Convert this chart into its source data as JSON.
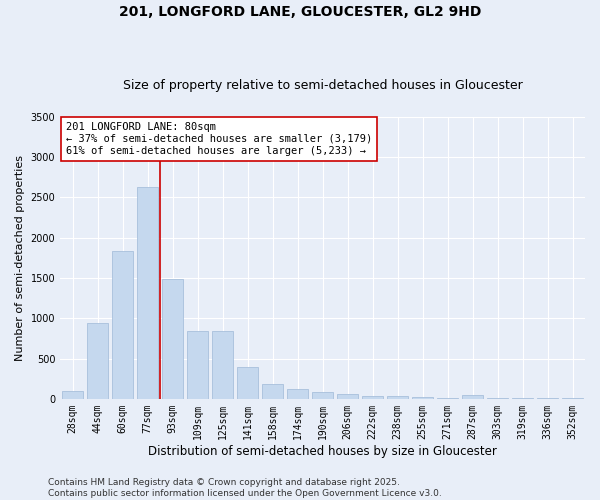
{
  "title_line1": "201, LONGFORD LANE, GLOUCESTER, GL2 9HD",
  "title_line2": "Size of property relative to semi-detached houses in Gloucester",
  "xlabel": "Distribution of semi-detached houses by size in Gloucester",
  "ylabel": "Number of semi-detached properties",
  "bar_color": "#c5d8ee",
  "bar_edge_color": "#a8c0dc",
  "background_color": "#e8eef8",
  "categories": [
    "28sqm",
    "44sqm",
    "60sqm",
    "77sqm",
    "93sqm",
    "109sqm",
    "125sqm",
    "141sqm",
    "158sqm",
    "174sqm",
    "190sqm",
    "206sqm",
    "222sqm",
    "238sqm",
    "255sqm",
    "271sqm",
    "287sqm",
    "303sqm",
    "319sqm",
    "336sqm",
    "352sqm"
  ],
  "values": [
    95,
    940,
    1830,
    2630,
    1490,
    840,
    840,
    390,
    185,
    120,
    80,
    55,
    35,
    30,
    20,
    15,
    50,
    10,
    5,
    5,
    5
  ],
  "ylim": [
    0,
    3500
  ],
  "yticks": [
    0,
    500,
    1000,
    1500,
    2000,
    2500,
    3000,
    3500
  ],
  "vline_color": "#cc0000",
  "vline_pos": 3.5,
  "annotation_text": "201 LONGFORD LANE: 80sqm\n← 37% of semi-detached houses are smaller (3,179)\n61% of semi-detached houses are larger (5,233) →",
  "annotation_box_color": "#ffffff",
  "annotation_box_edge": "#cc0000",
  "footer_text": "Contains HM Land Registry data © Crown copyright and database right 2025.\nContains public sector information licensed under the Open Government Licence v3.0.",
  "title_fontsize": 10,
  "subtitle_fontsize": 9,
  "annotation_fontsize": 7.5,
  "ylabel_fontsize": 8,
  "xlabel_fontsize": 8.5,
  "footer_fontsize": 6.5,
  "tick_fontsize": 7
}
